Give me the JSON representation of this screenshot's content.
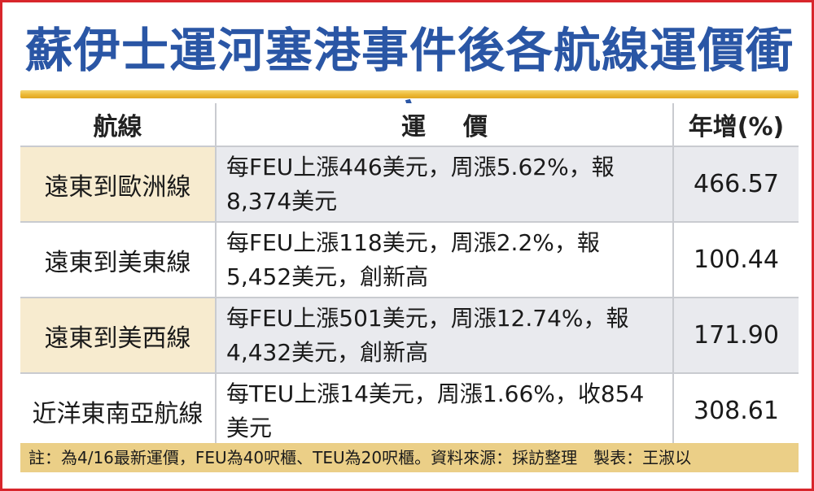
{
  "title": "蘇伊士運河塞港事件後各航線運價衝高",
  "table": {
    "headers": {
      "route": "航線",
      "rate": "運價",
      "growth": "年增(%)"
    },
    "rows": [
      {
        "route": "遠東到歐洲線",
        "rate": "每FEU上漲446美元，周漲5.62%，報8,374美元",
        "growth": "466.57"
      },
      {
        "route": "遠東到美東線",
        "rate": "每FEU上漲118美元，周漲2.2%，報5,452美元，創新高",
        "growth": "100.44"
      },
      {
        "route": "遠東到美西線",
        "rate": "每FEU上漲501美元，周漲12.74%，報4,432美元，創新高",
        "growth": "171.90"
      },
      {
        "route": "近洋東南亞航線",
        "rate": "每TEU上漲14美元，周漲1.66%，收854美元",
        "growth": "308.61"
      }
    ]
  },
  "footnote": "註：為4/16最新運價，FEU為40呎櫃、TEU為20呎櫃。資料來源：採訪整理　製表：王淑以",
  "colors": {
    "title": "#2a56a5",
    "border": "#d8262c",
    "route_fill": "#f7ebcf",
    "cell_fill": "#e9eaee",
    "note_fill": "#ebcf87",
    "rule": "#ecb935"
  }
}
